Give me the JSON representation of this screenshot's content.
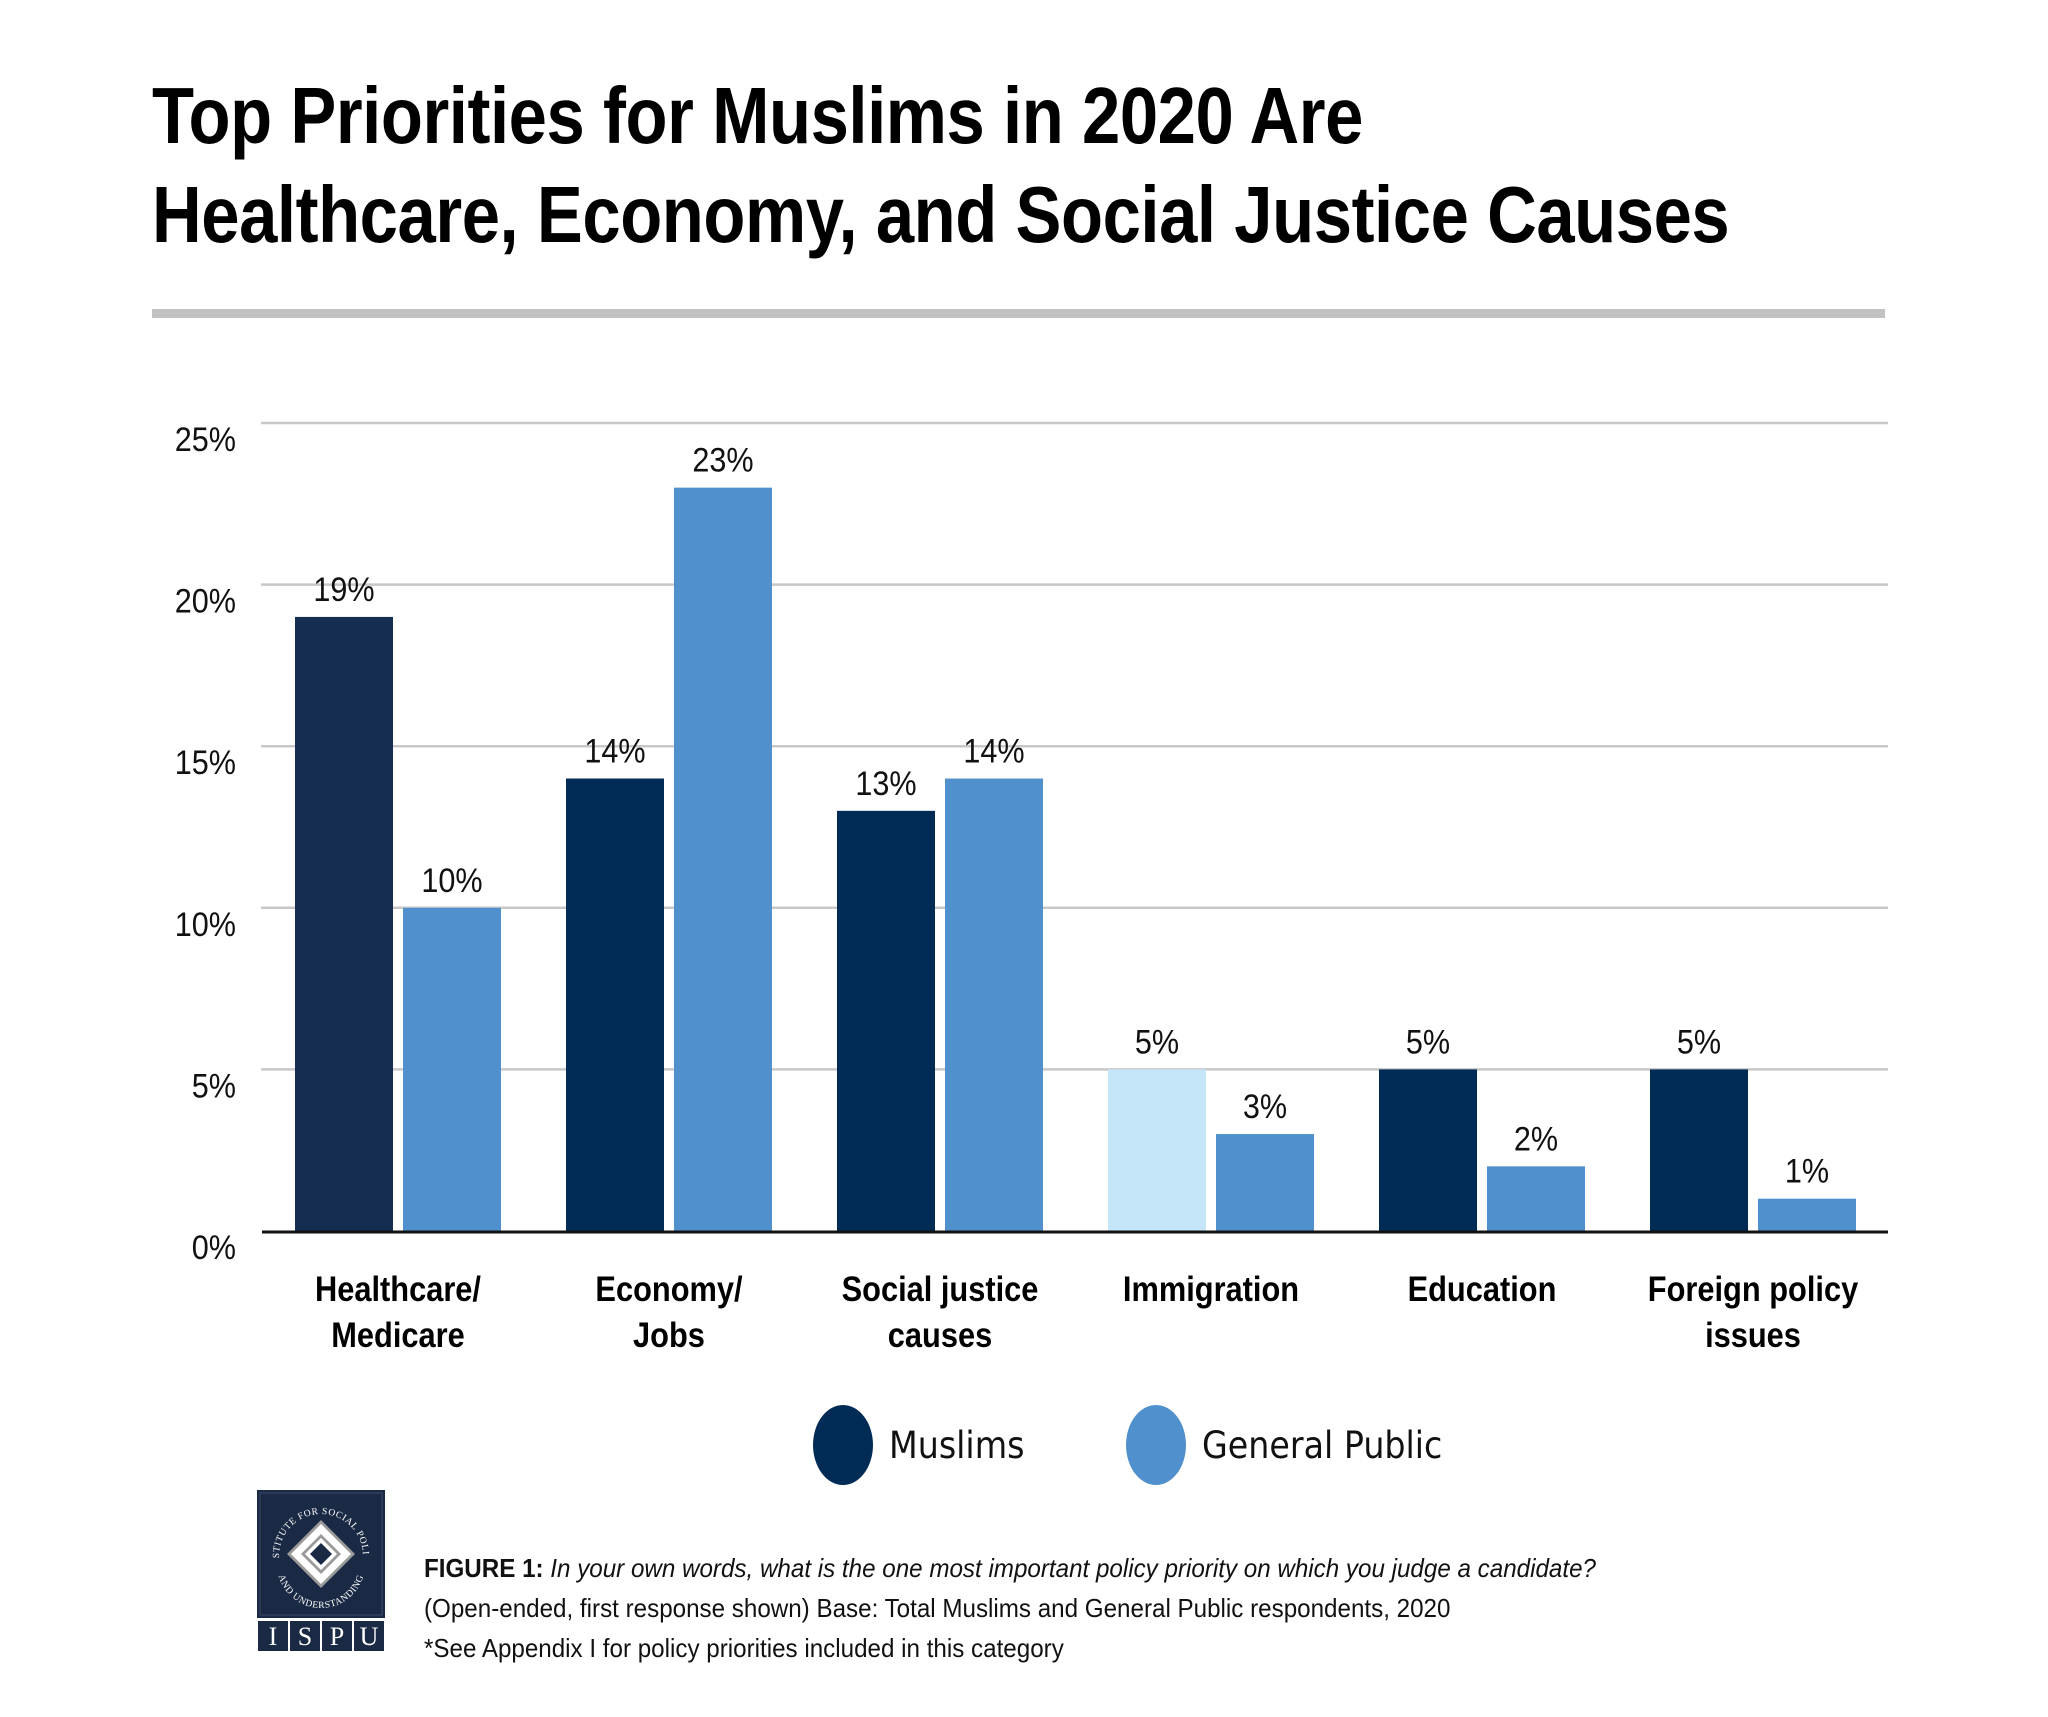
{
  "title": {
    "line1": "Top Priorities for Muslims in 2020 Are",
    "line2": "Healthcare, Economy, and Social Justice Causes"
  },
  "chart_data": {
    "type": "bar",
    "title": "Top Priorities for Muslims in 2020 Are Healthcare, Economy, and Social Justice Causes",
    "xlabel": "",
    "ylabel": "",
    "ylim": [
      0,
      25
    ],
    "yticks": [
      0,
      5,
      10,
      15,
      20,
      25
    ],
    "ytick_labels": [
      "0%",
      "5%",
      "10%",
      "15%",
      "20%",
      "25%"
    ],
    "grid": true,
    "legend_position": "bottom-center",
    "categories": [
      [
        "Healthcare/",
        "Medicare"
      ],
      [
        "Economy/",
        "Jobs"
      ],
      [
        "Social justice",
        "causes"
      ],
      [
        "Immigration"
      ],
      [
        "Education"
      ],
      [
        "Foreign policy",
        "issues"
      ]
    ],
    "series": [
      {
        "name": "Muslims",
        "color": "#002b55",
        "values": [
          19,
          14,
          13,
          5,
          5,
          5
        ],
        "labels": [
          "19%",
          "14%",
          "13%",
          "5%",
          "5%",
          "5%"
        ],
        "bar_colors": [
          "#162d52",
          "#002b55",
          "#002b55",
          "#c5e5f8",
          "#002b55",
          "#002b55"
        ]
      },
      {
        "name": "General Public",
        "color": "#5091cd",
        "values": [
          10,
          23,
          14,
          3,
          2,
          1
        ],
        "labels": [
          "10%",
          "23%",
          "14%",
          "3%",
          "2%",
          "1%"
        ],
        "bar_colors": [
          "#5091cd",
          "#5091cd",
          "#5091cd",
          "#5091cd",
          "#5091cd",
          "#5091cd"
        ]
      }
    ]
  },
  "legend": {
    "items": [
      {
        "label": "Muslims",
        "color": "#002b55"
      },
      {
        "label": "General Public",
        "color": "#5091cd"
      }
    ]
  },
  "footer": {
    "logo": {
      "ring_text_top": "INSTITUTE FOR SOCIAL POLICY",
      "ring_text_bottom": "AND UNDERSTANDING",
      "letters": [
        "I",
        "S",
        "P",
        "U"
      ],
      "color": "#1a2a44"
    },
    "caption": {
      "figure_label": "FIGURE 1:",
      "question": "In your own words, what is the one most important policy priority on which you judge a candidate?",
      "line2": "(Open-ended, first response shown) Base: Total Muslims and General Public respondents, 2020",
      "line3": "*See Appendix I for policy priorities included in this category"
    }
  },
  "colors": {
    "gridline": "#c8c8c8",
    "axis": "#111111",
    "header_rule": "#c2c2c2"
  }
}
